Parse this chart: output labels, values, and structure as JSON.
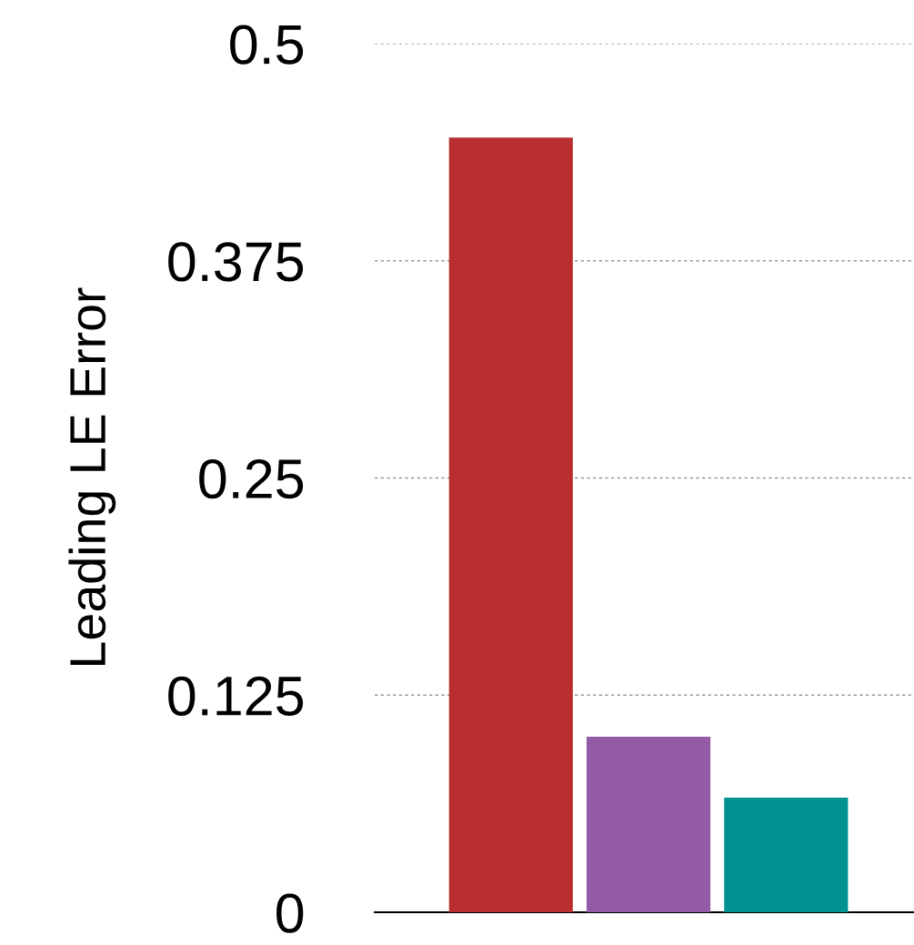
{
  "chart_data": {
    "type": "bar",
    "ylabel": "Leading LE Error",
    "categories": [
      null,
      null,
      null
    ],
    "values": [
      0.446,
      0.101,
      0.066
    ],
    "colors": [
      "#b92e2e",
      "#935ba6",
      "#009191"
    ],
    "ylim": [
      0,
      0.5
    ],
    "yticks": [
      0,
      0.125,
      0.25,
      0.375,
      0.5
    ],
    "grid": "y"
  }
}
